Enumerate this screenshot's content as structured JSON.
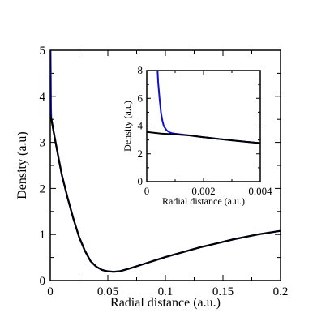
{
  "chart_data": [
    {
      "type": "line",
      "title": "",
      "xlabel": "Radial distance (a.u.)",
      "ylabel": "Density (a.u)",
      "xlim": [
        0,
        0.2
      ],
      "ylim": [
        0,
        5
      ],
      "xticks": [
        0,
        0.05,
        0.1,
        0.15,
        0.2
      ],
      "xtick_labels": [
        "0",
        "0.05",
        "0.1",
        "0.15",
        "0.2"
      ],
      "yticks": [
        0,
        1,
        2,
        3,
        4,
        5
      ],
      "ytick_labels": [
        "0",
        "1",
        "2",
        "3",
        "4",
        "5"
      ],
      "grid": false,
      "series": [
        {
          "color": "#1010d0",
          "x": [
            0.0,
            0.0002,
            0.0004,
            0.0006,
            0.0008,
            0.001,
            0.0012,
            0.0015,
            0.002,
            0.003,
            0.005,
            0.0075,
            0.01,
            0.015,
            0.02,
            0.025,
            0.03,
            0.035,
            0.04,
            0.045,
            0.05,
            0.055,
            0.06,
            0.07,
            0.08,
            0.09,
            0.1,
            0.11,
            0.12,
            0.13,
            0.14,
            0.15,
            0.16,
            0.17,
            0.18,
            0.19,
            0.2
          ],
          "y": [
            5.0,
            5.0,
            4.4,
            3.75,
            3.55,
            3.5,
            3.47,
            3.43,
            3.36,
            3.22,
            2.95,
            2.62,
            2.3,
            1.8,
            1.35,
            0.95,
            0.65,
            0.42,
            0.3,
            0.23,
            0.2,
            0.19,
            0.2,
            0.27,
            0.35,
            0.43,
            0.51,
            0.58,
            0.65,
            0.72,
            0.78,
            0.84,
            0.9,
            0.95,
            1.0,
            1.04,
            1.08
          ]
        },
        {
          "color": "#000000",
          "x": [
            0.0,
            0.001,
            0.002,
            0.003,
            0.005,
            0.0075,
            0.01,
            0.015,
            0.02,
            0.025,
            0.03,
            0.035,
            0.04,
            0.045,
            0.05,
            0.055,
            0.06,
            0.07,
            0.08,
            0.09,
            0.1,
            0.11,
            0.12,
            0.13,
            0.14,
            0.15,
            0.16,
            0.17,
            0.18,
            0.19,
            0.2
          ],
          "y": [
            3.6,
            3.5,
            3.36,
            3.22,
            2.95,
            2.62,
            2.3,
            1.8,
            1.35,
            0.95,
            0.65,
            0.42,
            0.3,
            0.23,
            0.2,
            0.19,
            0.2,
            0.27,
            0.35,
            0.43,
            0.51,
            0.58,
            0.65,
            0.72,
            0.78,
            0.84,
            0.9,
            0.95,
            1.0,
            1.04,
            1.08
          ]
        }
      ]
    },
    {
      "type": "line",
      "title": "",
      "xlabel": "Radial distance (a.u.)",
      "ylabel": "Density (a.u)",
      "xlim": [
        0,
        0.004
      ],
      "ylim": [
        0,
        8
      ],
      "xticks": [
        0,
        0.002,
        0.004
      ],
      "xtick_labels": [
        "0",
        "0.002",
        "0.004"
      ],
      "yticks": [
        0,
        2,
        4,
        6,
        8
      ],
      "ytick_labels": [
        "0",
        "2",
        "4",
        "6",
        "8"
      ],
      "grid": false,
      "series": [
        {
          "color": "#1010d0",
          "x": [
            0.00038,
            0.0004,
            0.00045,
            0.0005,
            0.00055,
            0.0006,
            0.0007,
            0.0008,
            0.0009,
            0.001,
            0.0012,
            0.0015,
            0.002,
            0.0025,
            0.003,
            0.0035,
            0.004
          ],
          "y": [
            8.0,
            7.2,
            6.0,
            5.0,
            4.4,
            4.0,
            3.7,
            3.55,
            3.48,
            3.45,
            3.4,
            3.33,
            3.2,
            3.08,
            2.97,
            2.87,
            2.77
          ]
        },
        {
          "color": "#000000",
          "x": [
            0.0,
            0.0005,
            0.001,
            0.0015,
            0.002,
            0.0025,
            0.003,
            0.0035,
            0.004
          ],
          "y": [
            3.58,
            3.46,
            3.4,
            3.33,
            3.2,
            3.08,
            2.97,
            2.87,
            2.77
          ]
        }
      ]
    }
  ]
}
